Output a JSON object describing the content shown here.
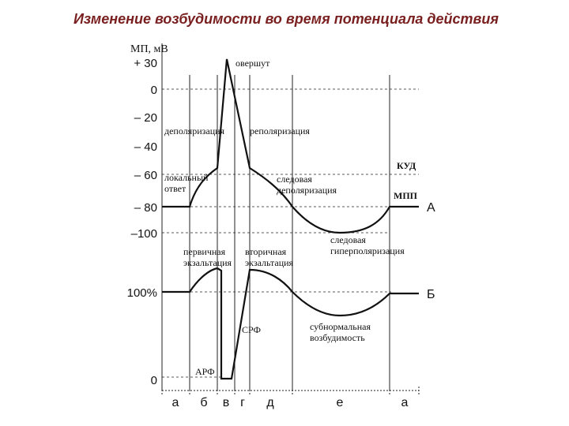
{
  "title": "Изменение возбудимости во время потенциала действия",
  "axis_label": "МП, мВ",
  "potential_ticks": [
    "+ 30",
    "0",
    "– 20",
    "– 40",
    "– 60",
    "– 80",
    "–100"
  ],
  "excitability_ticks": [
    "100%",
    "0"
  ],
  "curve_labels": [
    "А",
    "Б"
  ],
  "phases": [
    "а",
    "б",
    "в",
    "г",
    "д",
    "е",
    "а"
  ],
  "annotations": {
    "overshoot": [
      "овершут"
    ],
    "depolarization": [
      "деполяризация"
    ],
    "repolarization": [
      "реполяризация"
    ],
    "threshold": [
      "КУД"
    ],
    "local_response": [
      "локальный",
      "ответ"
    ],
    "trace_depolarization": [
      "следовая",
      "деполяризация"
    ],
    "resting_potential": [
      "МПП"
    ],
    "trace_hyperpolarization": [
      "следовая",
      "гиперполяризация"
    ],
    "primary_exaltation": [
      "первичная",
      "экзальтация"
    ],
    "secondary_exaltation": [
      "вторичная",
      "экзальтация"
    ],
    "relative_refractory": [
      "СРФ"
    ],
    "subnormal": [
      "субнормальная",
      "возбудимость"
    ],
    "absolute_refractory": [
      "АРФ"
    ]
  }
}
